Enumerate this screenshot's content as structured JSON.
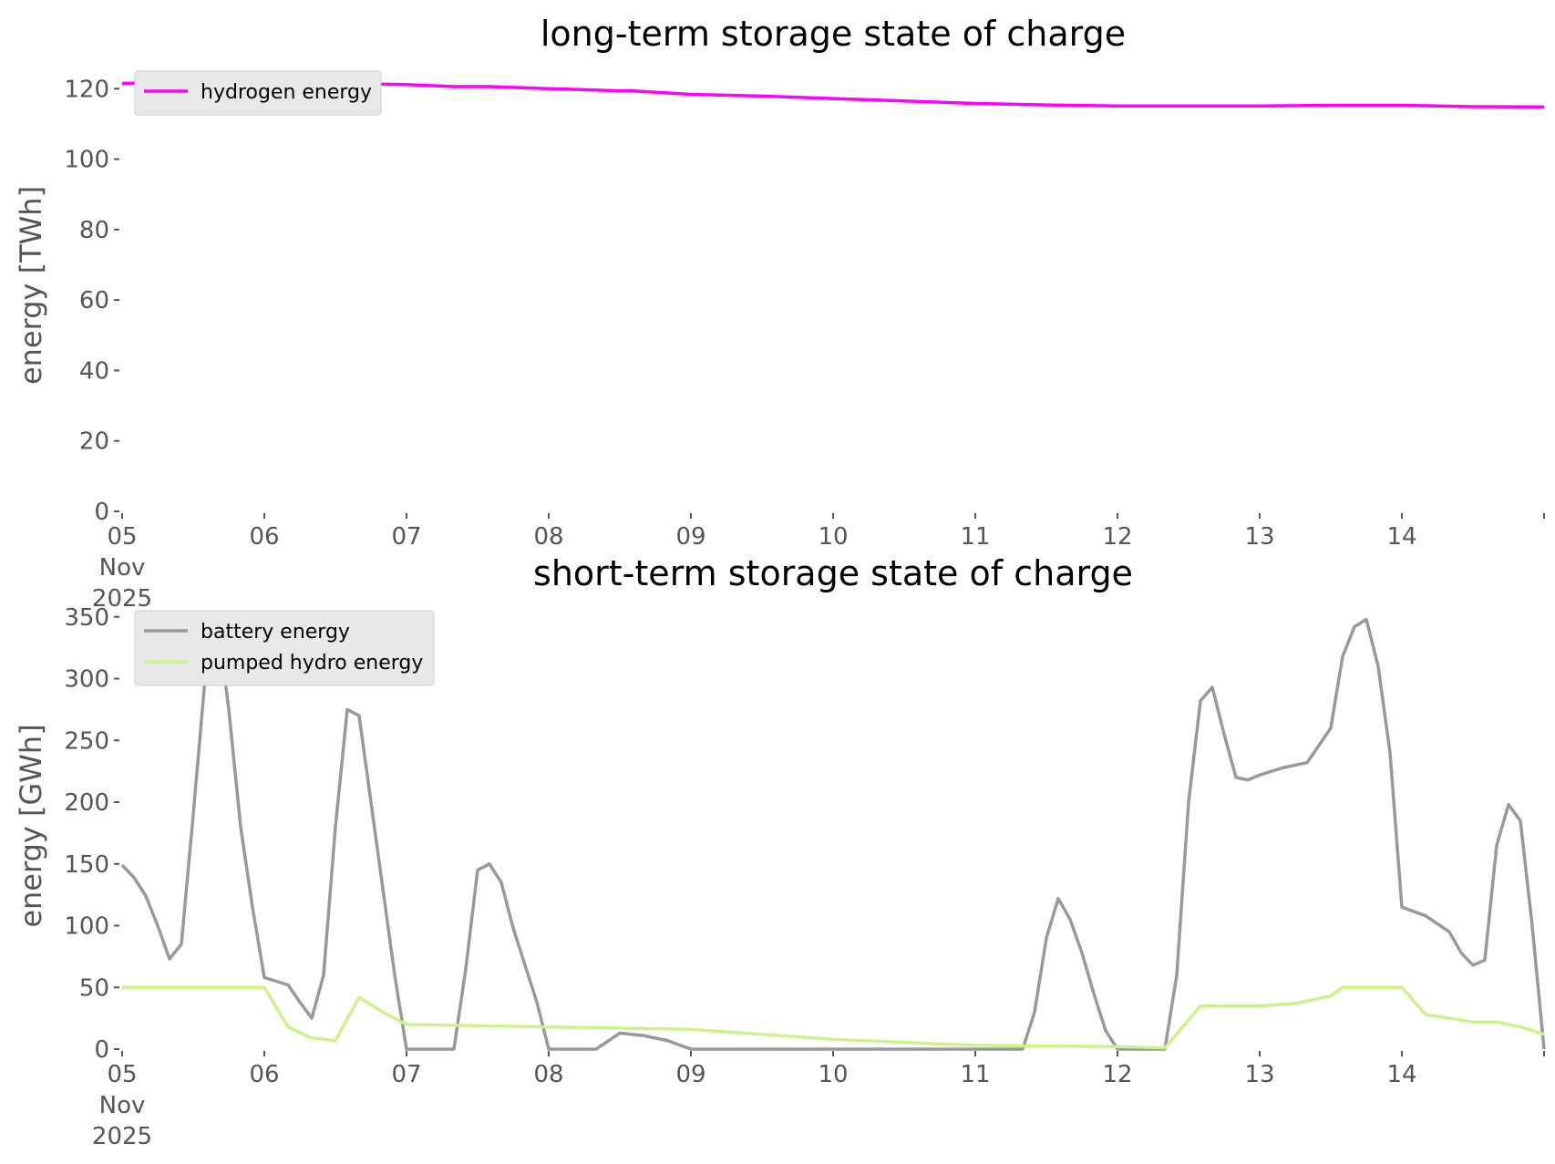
{
  "chart_data": [
    {
      "type": "line",
      "title": "long-term storage state of charge",
      "ylabel": "energy [TWh]",
      "xlabel": "",
      "x_range": [
        "2025-11-05",
        "2025-11-15"
      ],
      "ylim": [
        0,
        125
      ],
      "yticks": [
        0,
        20,
        40,
        60,
        80,
        100,
        120
      ],
      "xtick_labels": [
        "05\nNov\n2025",
        "06",
        "07",
        "08",
        "09",
        "10",
        "11",
        "12",
        "13",
        "14"
      ],
      "grid": false,
      "legend_position": "top-left",
      "series": [
        {
          "name": "hydrogen energy",
          "color": "#ff00ff",
          "x": [
            "2025-11-05 00:00",
            "2025-11-05 12:00",
            "2025-11-06 00:00",
            "2025-11-06 12:00",
            "2025-11-07 00:00",
            "2025-11-07 08:00",
            "2025-11-07 14:00",
            "2025-11-08 00:00",
            "2025-11-08 12:00",
            "2025-11-08 14:00",
            "2025-11-09 00:00",
            "2025-11-09 12:00",
            "2025-11-10 00:00",
            "2025-11-10 12:00",
            "2025-11-11 00:00",
            "2025-11-11 12:00",
            "2025-11-12 00:00",
            "2025-11-12 12:00",
            "2025-11-13 00:00",
            "2025-11-13 12:00",
            "2025-11-14 00:00",
            "2025-11-14 12:00",
            "2025-11-15 00:00"
          ],
          "y": [
            121.5,
            121.8,
            121.7,
            121.5,
            121.2,
            120.6,
            120.6,
            120.0,
            119.4,
            119.4,
            118.4,
            117.9,
            117.2,
            116.5,
            115.8,
            115.4,
            115.1,
            115.1,
            115.1,
            115.3,
            115.3,
            114.9,
            114.8
          ]
        }
      ]
    },
    {
      "type": "line",
      "title": "short-term storage state of charge",
      "ylabel": "energy [GWh]",
      "xlabel": "",
      "x_range": [
        "2025-11-05",
        "2025-11-15"
      ],
      "ylim": [
        0,
        355
      ],
      "yticks": [
        0,
        50,
        100,
        150,
        200,
        250,
        300,
        350
      ],
      "xtick_labels": [
        "05\nNov\n2025",
        "06",
        "07",
        "08",
        "09",
        "10",
        "11",
        "12",
        "13",
        "14"
      ],
      "grid": false,
      "legend_position": "top-left",
      "series": [
        {
          "name": "battery energy",
          "color": "#999999",
          "x": [
            "2025-11-05 00:00",
            "2025-11-05 02:00",
            "2025-11-05 04:00",
            "2025-11-05 06:00",
            "2025-11-05 08:00",
            "2025-11-05 10:00",
            "2025-11-05 12:00",
            "2025-11-05 14:00",
            "2025-11-05 16:00",
            "2025-11-05 18:00",
            "2025-11-05 20:00",
            "2025-11-05 22:00",
            "2025-11-06 00:00",
            "2025-11-06 02:00",
            "2025-11-06 04:00",
            "2025-11-06 06:00",
            "2025-11-06 08:00",
            "2025-11-06 10:00",
            "2025-11-06 12:00",
            "2025-11-06 14:00",
            "2025-11-06 16:00",
            "2025-11-06 18:00",
            "2025-11-06 20:00",
            "2025-11-06 22:00",
            "2025-11-07 00:00",
            "2025-11-07 04:00",
            "2025-11-07 08:00",
            "2025-11-07 10:00",
            "2025-11-07 12:00",
            "2025-11-07 14:00",
            "2025-11-07 16:00",
            "2025-11-07 18:00",
            "2025-11-07 20:00",
            "2025-11-07 22:00",
            "2025-11-08 00:00",
            "2025-11-08 04:00",
            "2025-11-08 08:00",
            "2025-11-08 12:00",
            "2025-11-08 16:00",
            "2025-11-08 20:00",
            "2025-11-09 00:00",
            "2025-11-10 00:00",
            "2025-11-11 00:00",
            "2025-11-11 08:00",
            "2025-11-11 10:00",
            "2025-11-11 12:00",
            "2025-11-11 14:00",
            "2025-11-11 16:00",
            "2025-11-11 18:00",
            "2025-11-11 20:00",
            "2025-11-11 22:00",
            "2025-11-12 00:00",
            "2025-11-12 04:00",
            "2025-11-12 08:00",
            "2025-11-12 10:00",
            "2025-11-12 12:00",
            "2025-11-12 14:00",
            "2025-11-12 16:00",
            "2025-11-12 18:00",
            "2025-11-12 20:00",
            "2025-11-12 22:00",
            "2025-11-13 00:00",
            "2025-11-13 04:00",
            "2025-11-13 08:00",
            "2025-11-13 12:00",
            "2025-11-13 14:00",
            "2025-11-13 16:00",
            "2025-11-13 18:00",
            "2025-11-13 20:00",
            "2025-11-13 22:00",
            "2025-11-14 00:00",
            "2025-11-14 04:00",
            "2025-11-14 08:00",
            "2025-11-14 10:00",
            "2025-11-14 12:00",
            "2025-11-14 14:00",
            "2025-11-14 16:00",
            "2025-11-14 18:00",
            "2025-11-14 20:00",
            "2025-11-14 22:00",
            "2025-11-15 00:00"
          ],
          "y": [
            149,
            139,
            124,
            100,
            73,
            85,
            190,
            300,
            350,
            275,
            180,
            115,
            58,
            55,
            52,
            38,
            25,
            60,
            180,
            275,
            270,
            200,
            130,
            60,
            0,
            0,
            0,
            65,
            145,
            150,
            135,
            98,
            68,
            38,
            0,
            0,
            0,
            13,
            11,
            7,
            0,
            0,
            0,
            0,
            30,
            90,
            122,
            105,
            78,
            45,
            15,
            0,
            0,
            0,
            60,
            200,
            282,
            293,
            255,
            220,
            218,
            222,
            228,
            232,
            260,
            318,
            342,
            348,
            310,
            240,
            115,
            108,
            95,
            78,
            68,
            72,
            165,
            198,
            185,
            100,
            0
          ]
        },
        {
          "name": "pumped hydro energy",
          "color": "#ccf28c",
          "x": [
            "2025-11-05 00:00",
            "2025-11-06 00:00",
            "2025-11-06 04:00",
            "2025-11-06 08:00",
            "2025-11-06 12:00",
            "2025-11-06 16:00",
            "2025-11-06 20:00",
            "2025-11-07 00:00",
            "2025-11-08 00:00",
            "2025-11-09 00:00",
            "2025-11-10 00:00",
            "2025-11-11 00:00",
            "2025-11-12 00:00",
            "2025-11-12 08:00",
            "2025-11-12 14:00",
            "2025-11-13 00:00",
            "2025-11-13 06:00",
            "2025-11-13 12:00",
            "2025-11-13 14:00",
            "2025-11-14 00:00",
            "2025-11-14 04:00",
            "2025-11-14 08:00",
            "2025-11-14 12:00",
            "2025-11-14 16:00",
            "2025-11-14 20:00",
            "2025-11-15 00:00"
          ],
          "y": [
            50,
            50,
            18,
            9,
            7,
            42,
            30,
            20,
            18,
            16,
            8,
            3,
            2,
            1,
            35,
            35,
            37,
            43,
            50,
            50,
            28,
            25,
            22,
            22,
            18,
            12
          ]
        }
      ]
    }
  ]
}
